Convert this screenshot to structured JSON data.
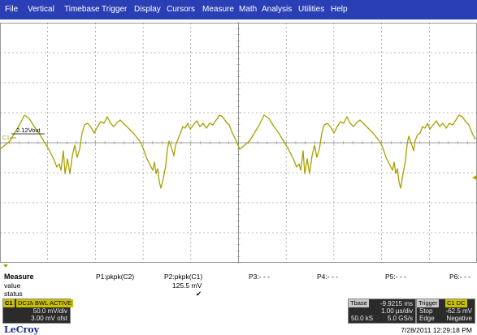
{
  "menu": [
    "File",
    "Vertical",
    "Timebase",
    "Trigger",
    "Display",
    "Cursors",
    "Measure",
    "Math",
    "Analysis",
    "Utilities",
    "Help"
  ],
  "scope": {
    "channel_marker": "C1",
    "voltage_label": "2.12Vout",
    "trace_color": "#a8a000",
    "grid_color": "#7f7f7f"
  },
  "measure": {
    "title": "Measure",
    "row_value": "value",
    "row_status": "status",
    "p1_label": "P1:pkpk(C2)",
    "p2_label": "P2:pkpk(C1)",
    "p2_value": "125.5 mV",
    "p2_status": "✔",
    "p3_label": "P3:- - -",
    "p4_label": "P4:- - -",
    "p5_label": "P5:- - -",
    "p6_label": "P6:- - -"
  },
  "channel_box": {
    "name": "C1",
    "badges": [
      "DC1M",
      "BWL",
      "ACTIVE"
    ],
    "vdiv": "50.0 mV/div",
    "offset": "3.00 mV ofst"
  },
  "tbase_box": {
    "title": "Tbase",
    "delay": "-9.9215 ms",
    "tdiv": "1.00 µs/div",
    "samples": "50.0 kS",
    "rate": "5.0 GS/s"
  },
  "trigger_box": {
    "title": "Trigger",
    "badge": "C1 DC",
    "mode": "Stop",
    "level": "-62.5 mV",
    "type": "Edge",
    "slope": "Negative"
  },
  "brand": "LeCroy",
  "timestamp": "7/28/2011 12:29:18 PM"
}
